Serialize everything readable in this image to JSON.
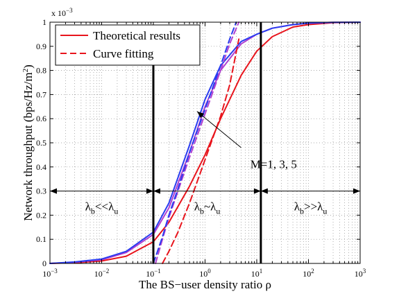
{
  "chart_data": {
    "type": "line",
    "title": "",
    "xlabel": "The BS−user density ratio ρ",
    "ylabel": "Network throughput (bps/Hz/m",
    "ylabel_sup": "2",
    "ylabel_close": ")",
    "y_exponent": "x 10",
    "y_exponent_power": "−3",
    "x_scale": "log",
    "xlim": [
      0.001,
      1000
    ],
    "ylim": [
      0,
      1
    ],
    "grid": true,
    "x_ticks": [
      {
        "value": 0.001,
        "base": "10",
        "exp": "−3"
      },
      {
        "value": 0.01,
        "base": "10",
        "exp": "−2"
      },
      {
        "value": 0.1,
        "base": "10",
        "exp": "−1"
      },
      {
        "value": 1,
        "base": "10",
        "exp": "0"
      },
      {
        "value": 10,
        "base": "10",
        "exp": "1"
      },
      {
        "value": 100,
        "base": "10",
        "exp": "2"
      },
      {
        "value": 1000,
        "base": "10",
        "exp": "3"
      }
    ],
    "y_ticks": [
      {
        "value": 0,
        "label": "0"
      },
      {
        "value": 0.1,
        "label": "0.1"
      },
      {
        "value": 0.2,
        "label": "0.2"
      },
      {
        "value": 0.3,
        "label": "0.3"
      },
      {
        "value": 0.4,
        "label": "0.4"
      },
      {
        "value": 0.5,
        "label": "0.5"
      },
      {
        "value": 0.6,
        "label": "0.6"
      },
      {
        "value": 0.7,
        "label": "0.7"
      },
      {
        "value": 0.8,
        "label": "0.8"
      },
      {
        "value": 0.9,
        "label": "0.9"
      },
      {
        "value": 1,
        "label": "1"
      }
    ],
    "legend": {
      "placement": "top-left",
      "entries": [
        {
          "label": "Theoretical results",
          "style": "solid",
          "color": "#e8141c"
        },
        {
          "label": "Curve fitting",
          "style": "dashed",
          "color": "#e8141c"
        }
      ]
    },
    "series": [
      {
        "kind": "theoretical",
        "style": "solid",
        "color": "#e8141c",
        "x": [
          0.001,
          0.003,
          0.01,
          0.03,
          0.1,
          0.2,
          0.5,
          1,
          2,
          5,
          10,
          20,
          50,
          100,
          300,
          1000
        ],
        "y": [
          0.0,
          0.003,
          0.01,
          0.03,
          0.09,
          0.17,
          0.32,
          0.45,
          0.6,
          0.78,
          0.88,
          0.94,
          0.98,
          0.99,
          0.998,
          1.0
        ]
      },
      {
        "kind": "theoretical",
        "style": "solid",
        "color": "#b040d0",
        "x": [
          0.001,
          0.003,
          0.01,
          0.03,
          0.1,
          0.2,
          0.5,
          1,
          2,
          5,
          10,
          20,
          50,
          100,
          300,
          1000
        ],
        "y": [
          0.0,
          0.005,
          0.015,
          0.045,
          0.12,
          0.23,
          0.46,
          0.65,
          0.8,
          0.91,
          0.95,
          0.975,
          0.99,
          0.996,
          0.999,
          1.0
        ]
      },
      {
        "kind": "theoretical",
        "style": "solid",
        "color": "#2a3cf0",
        "x": [
          0.001,
          0.003,
          0.01,
          0.03,
          0.1,
          0.2,
          0.5,
          1,
          2,
          5,
          10,
          20,
          50,
          100,
          300,
          1000
        ],
        "y": [
          0.0,
          0.006,
          0.018,
          0.05,
          0.13,
          0.25,
          0.49,
          0.68,
          0.82,
          0.92,
          0.95,
          0.975,
          0.99,
          0.996,
          0.999,
          1.0
        ]
      },
      {
        "kind": "fitting",
        "style": "dashed",
        "color": "#e8141c",
        "x": [
          0.15,
          0.2,
          0.3,
          0.5,
          1,
          2,
          3,
          4.5
        ],
        "y": [
          0.0,
          0.05,
          0.13,
          0.25,
          0.43,
          0.61,
          0.74,
          0.93
        ]
      },
      {
        "kind": "fitting",
        "style": "dashed",
        "color": "#b040d0",
        "x": [
          0.11,
          0.15,
          0.2,
          0.3,
          0.5,
          1,
          2,
          3,
          4.5
        ],
        "y": [
          0.0,
          0.1,
          0.19,
          0.3,
          0.44,
          0.62,
          0.8,
          0.91,
          1.0
        ]
      },
      {
        "kind": "fitting",
        "style": "dashed",
        "color": "#2a3cf0",
        "x": [
          0.1,
          0.15,
          0.2,
          0.3,
          0.5,
          1,
          2,
          3,
          4
        ],
        "y": [
          0.0,
          0.11,
          0.2,
          0.31,
          0.46,
          0.64,
          0.82,
          0.93,
          1.0
        ]
      }
    ],
    "vertical_lines": [
      {
        "x": 0.1,
        "y_top": 0.85
      },
      {
        "x": 12,
        "y_top": 1.0
      }
    ],
    "region_arrow_y": 0.3,
    "regions": [
      {
        "x_start": 0.001,
        "x_end": 0.1,
        "label_x": 0.01,
        "label_y": 0.22,
        "a": "λ",
        "a_sub": "b",
        "rel": "<<",
        "b": "λ",
        "b_sub": "u"
      },
      {
        "x_start": 0.1,
        "x_end": 12,
        "label_x": 1.1,
        "label_y": 0.22,
        "a": "λ",
        "a_sub": "b",
        "rel": "~",
        "b": "λ",
        "b_sub": "u"
      },
      {
        "x_start": 12,
        "x_end": 1000,
        "label_x": 110,
        "label_y": 0.22,
        "a": "λ",
        "a_sub": "b",
        "rel": ">>",
        "b": "λ",
        "b_sub": "u"
      }
    ],
    "annotation": {
      "text": "M=1, 3, 5",
      "text_x": 7.5,
      "text_y": 0.395,
      "arrow_from_x": 5,
      "arrow_from_y": 0.48,
      "arrow_to_x": 0.7,
      "arrow_to_y": 0.63
    },
    "colors": {
      "red": "#e8141c",
      "purple": "#b040d0",
      "blue": "#2a3cf0",
      "axis": "#000000",
      "grid": "#8c8c8c"
    }
  }
}
